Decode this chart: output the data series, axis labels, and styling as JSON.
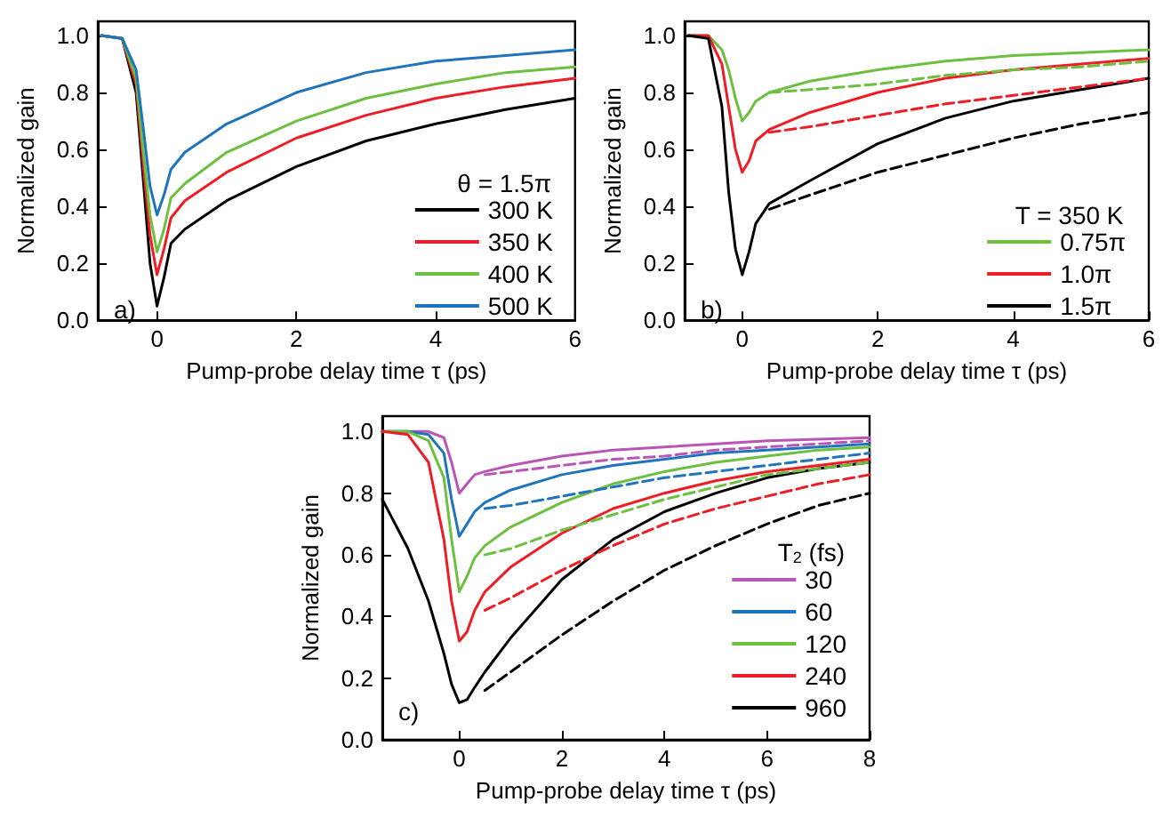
{
  "chart_data": [
    {
      "type": "line",
      "xlabel": "Pump-probe delay time τ (ps)",
      "ylabel": "Normalized gain",
      "legend_title": "θ = 1.5π",
      "annotations": [
        "a)"
      ],
      "legend": "bottom right",
      "marker": "none",
      "line_style": "solid",
      "x": [
        -0.8,
        -0.5,
        -0.3,
        -0.2,
        -0.1,
        0,
        0.1,
        0.2,
        0.4,
        1,
        2,
        3,
        4,
        5,
        6
      ],
      "xlim": [
        -0.85,
        6
      ],
      "xticks": [
        0,
        2,
        4,
        6
      ],
      "ylim": [
        0,
        1.05
      ],
      "yticks": [
        {
          "value": 0,
          "label": "0.0"
        },
        {
          "value": 0.2,
          "label": "0.2"
        },
        {
          "value": 0.4,
          "label": "0.4"
        },
        {
          "value": 0.6,
          "label": "0.6"
        },
        {
          "value": 0.8,
          "label": "0.8"
        },
        {
          "value": 1,
          "label": "1.0"
        }
      ],
      "series": [
        {
          "name": "300 K",
          "color": "#000000",
          "values": [
            1.0,
            0.99,
            0.8,
            0.5,
            0.2,
            0.05,
            0.15,
            0.27,
            0.32,
            0.42,
            0.54,
            0.63,
            0.69,
            0.74,
            0.78
          ]
        },
        {
          "name": "350 K",
          "color": "#ee1c24",
          "values": [
            1.0,
            0.99,
            0.83,
            0.55,
            0.3,
            0.16,
            0.25,
            0.36,
            0.42,
            0.52,
            0.64,
            0.72,
            0.78,
            0.82,
            0.85
          ]
        },
        {
          "name": "400 K",
          "color": "#6cbf3f",
          "values": [
            1.0,
            0.99,
            0.85,
            0.6,
            0.37,
            0.24,
            0.32,
            0.43,
            0.48,
            0.59,
            0.7,
            0.78,
            0.83,
            0.87,
            0.89
          ]
        },
        {
          "name": "500 K",
          "color": "#1f74bb",
          "values": [
            1.0,
            0.99,
            0.88,
            0.68,
            0.47,
            0.37,
            0.44,
            0.53,
            0.59,
            0.69,
            0.8,
            0.87,
            0.91,
            0.93,
            0.95
          ]
        }
      ]
    },
    {
      "type": "line",
      "xlabel": "Pump-probe delay time τ (ps)",
      "ylabel": "Normalized gain",
      "legend_title": "T = 350 K",
      "annotations": [
        "b)"
      ],
      "legend": "bottom right",
      "marker": "none",
      "line_style": "solid",
      "x": [
        -0.8,
        -0.5,
        -0.3,
        -0.2,
        -0.1,
        0,
        0.1,
        0.2,
        0.4,
        1,
        2,
        3,
        4,
        5,
        6
      ],
      "xlim": [
        -0.85,
        6
      ],
      "xticks": [
        0,
        2,
        4,
        6
      ],
      "ylim": [
        0,
        1.05
      ],
      "yticks": [
        {
          "value": 0,
          "label": "0.0"
        },
        {
          "value": 0.2,
          "label": "0.2"
        },
        {
          "value": 0.4,
          "label": "0.4"
        },
        {
          "value": 0.6,
          "label": "0.6"
        },
        {
          "value": 0.8,
          "label": "0.8"
        },
        {
          "value": 1,
          "label": "1.0"
        }
      ],
      "series": [
        {
          "name": "0.75π",
          "color": "#6cbf3f",
          "values": [
            1.0,
            1.0,
            0.95,
            0.88,
            0.78,
            0.7,
            0.73,
            0.77,
            0.8,
            0.84,
            0.88,
            0.91,
            0.93,
            0.94,
            0.95
          ]
        },
        {
          "name": "1.0π",
          "color": "#ee1c24",
          "values": [
            1.0,
            1.0,
            0.9,
            0.75,
            0.6,
            0.52,
            0.56,
            0.63,
            0.67,
            0.73,
            0.8,
            0.85,
            0.88,
            0.9,
            0.92
          ]
        },
        {
          "name": "1.5π",
          "color": "#000000",
          "values": [
            1.0,
            0.99,
            0.75,
            0.45,
            0.25,
            0.16,
            0.24,
            0.34,
            0.41,
            0.49,
            0.62,
            0.71,
            0.77,
            0.81,
            0.85
          ]
        },
        {
          "color": "#6cbf3f",
          "line_style": "dashed",
          "x": [
            0.4,
            1,
            2,
            3,
            4,
            5,
            6
          ],
          "values": [
            0.8,
            0.81,
            0.83,
            0.86,
            0.88,
            0.89,
            0.91
          ]
        },
        {
          "color": "#ee1c24",
          "line_style": "dashed",
          "x": [
            0.4,
            1,
            2,
            3,
            4,
            5,
            6
          ],
          "values": [
            0.66,
            0.68,
            0.72,
            0.76,
            0.79,
            0.82,
            0.85
          ]
        },
        {
          "color": "#000000",
          "line_style": "dashed",
          "x": [
            0.4,
            1,
            2,
            3,
            4,
            5,
            6
          ],
          "values": [
            0.39,
            0.44,
            0.52,
            0.58,
            0.64,
            0.69,
            0.73
          ]
        }
      ]
    },
    {
      "type": "line",
      "xlabel": "Pump-probe delay time τ (ps)",
      "ylabel": "Normalized gain",
      "legend_title": "T$_{2}$ (fs)",
      "annotations": [
        "c)"
      ],
      "legend": "bottom right",
      "marker": "none",
      "line_style": "solid",
      "x": [
        -1.5,
        -1,
        -0.6,
        -0.3,
        -0.15,
        0,
        0.15,
        0.3,
        0.5,
        1,
        2,
        3,
        4,
        5,
        6,
        7,
        8
      ],
      "xlim": [
        -1.5,
        8
      ],
      "xticks": [
        0,
        2,
        4,
        6,
        8
      ],
      "ylim": [
        0,
        1.05
      ],
      "yticks": [
        {
          "value": 0,
          "label": "0.0"
        },
        {
          "value": 0.2,
          "label": "0.2"
        },
        {
          "value": 0.4,
          "label": "0.4"
        },
        {
          "value": 0.6,
          "label": "0.6"
        },
        {
          "value": 0.8,
          "label": "0.8"
        },
        {
          "value": 1,
          "label": "1.0"
        }
      ],
      "series": [
        {
          "name": "30",
          "color": "#b855b5",
          "values": [
            1,
            1,
            1,
            0.98,
            0.9,
            0.8,
            0.83,
            0.86,
            0.87,
            0.89,
            0.92,
            0.94,
            0.95,
            0.96,
            0.97,
            0.975,
            0.98
          ]
        },
        {
          "name": "60",
          "color": "#1f74bb",
          "values": [
            1,
            1,
            0.99,
            0.93,
            0.78,
            0.66,
            0.7,
            0.74,
            0.77,
            0.81,
            0.86,
            0.89,
            0.91,
            0.93,
            0.94,
            0.95,
            0.96
          ]
        },
        {
          "name": "120",
          "color": "#6cbf3f",
          "values": [
            1,
            1,
            0.97,
            0.85,
            0.65,
            0.48,
            0.53,
            0.59,
            0.63,
            0.69,
            0.77,
            0.83,
            0.87,
            0.9,
            0.92,
            0.94,
            0.95
          ]
        },
        {
          "name": "240",
          "color": "#ee1c24",
          "values": [
            1,
            0.99,
            0.9,
            0.65,
            0.45,
            0.32,
            0.35,
            0.42,
            0.48,
            0.56,
            0.67,
            0.75,
            0.8,
            0.84,
            0.87,
            0.89,
            0.91
          ]
        },
        {
          "name": "960",
          "color": "#000000",
          "values": [
            0.78,
            0.62,
            0.45,
            0.28,
            0.18,
            0.12,
            0.13,
            0.17,
            0.22,
            0.33,
            0.52,
            0.65,
            0.74,
            0.8,
            0.85,
            0.88,
            0.9
          ]
        },
        {
          "color": "#b855b5",
          "line_style": "dashed",
          "x": [
            0.5,
            1,
            2,
            3,
            4,
            5,
            6,
            7,
            8
          ],
          "values": [
            0.86,
            0.87,
            0.89,
            0.91,
            0.92,
            0.94,
            0.95,
            0.96,
            0.97
          ]
        },
        {
          "color": "#1f74bb",
          "line_style": "dashed",
          "x": [
            0.5,
            1,
            2,
            3,
            4,
            5,
            6,
            7,
            8
          ],
          "values": [
            0.75,
            0.76,
            0.79,
            0.82,
            0.85,
            0.87,
            0.89,
            0.91,
            0.93
          ]
        },
        {
          "color": "#6cbf3f",
          "line_style": "dashed",
          "x": [
            0.5,
            1,
            2,
            3,
            4,
            5,
            6,
            7,
            8
          ],
          "values": [
            0.6,
            0.62,
            0.68,
            0.73,
            0.78,
            0.82,
            0.86,
            0.88,
            0.9
          ]
        },
        {
          "color": "#ee1c24",
          "line_style": "dashed",
          "x": [
            0.5,
            1,
            2,
            3,
            4,
            5,
            6,
            7,
            8
          ],
          "values": [
            0.42,
            0.46,
            0.55,
            0.63,
            0.7,
            0.75,
            0.79,
            0.83,
            0.86
          ]
        },
        {
          "color": "#000000",
          "line_style": "dashed",
          "x": [
            0.5,
            1,
            2,
            3,
            4,
            5,
            6,
            7,
            8
          ],
          "values": [
            0.16,
            0.22,
            0.34,
            0.45,
            0.55,
            0.63,
            0.7,
            0.76,
            0.8
          ]
        }
      ]
    }
  ]
}
